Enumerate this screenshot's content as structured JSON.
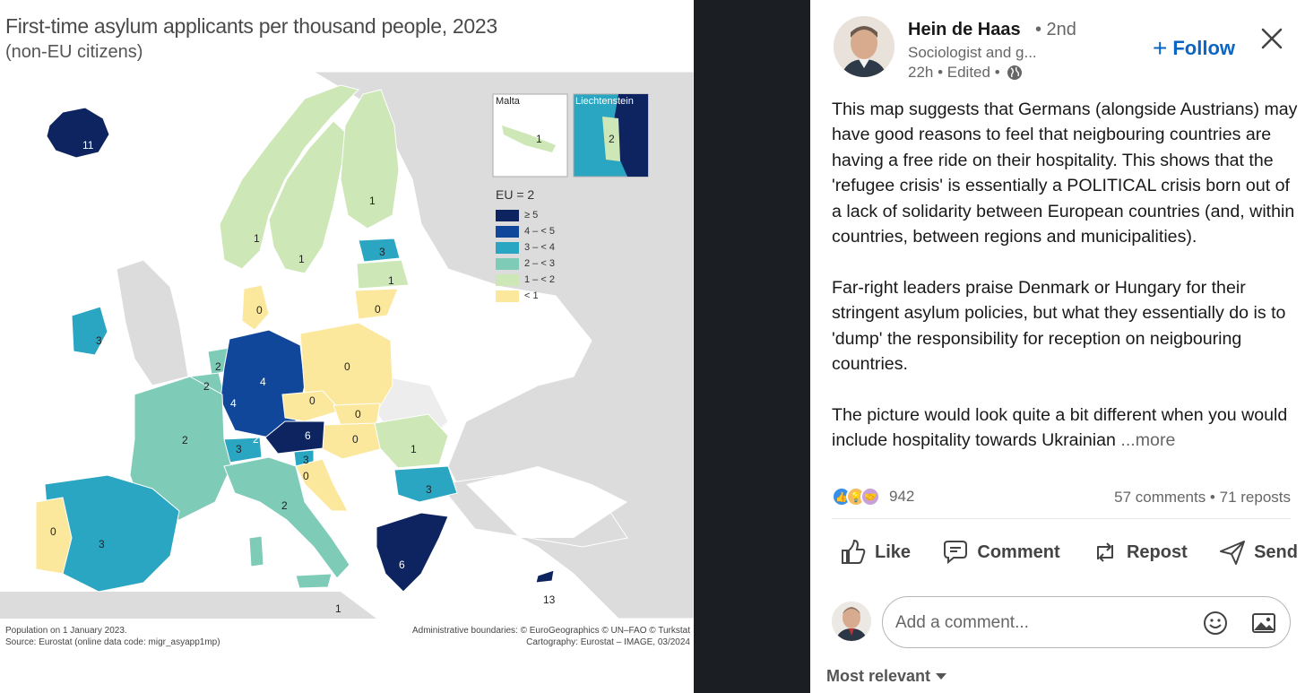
{
  "map": {
    "title": "First-time asylum applicants per thousand people, 2023",
    "subtitle": "(non-EU citizens)",
    "insets": {
      "malta": "Malta",
      "liechtenstein": "Liechtenstein",
      "malta_value": "1",
      "liechtenstein_value": "2"
    },
    "legend": {
      "title": "EU = 2",
      "items": [
        {
          "label": "≥ 5",
          "color": "#0d2461"
        },
        {
          "label": "4 – < 5",
          "color": "#10479a"
        },
        {
          "label": "3 – < 4",
          "color": "#2aa6c2"
        },
        {
          "label": "2 – < 3",
          "color": "#7ecbb8"
        },
        {
          "label": "1 – < 2",
          "color": "#cde8b6"
        },
        {
          "label": "< 1",
          "color": "#fbe89d"
        }
      ]
    },
    "value_labels": {
      "iceland": "11",
      "norway": "1",
      "sweden": "1",
      "finland": "1",
      "estonia": "3",
      "latvia": "1",
      "lithuania": "0",
      "denmark": "0",
      "ireland": "3",
      "netherlands": "2",
      "belgium": "2",
      "luxembourg": "4",
      "germany": "4",
      "poland": "0",
      "czechia": "0",
      "slovakia": "0",
      "hungary": "0",
      "austria": "6",
      "switzerland": "3",
      "liechtenstein_main": "2",
      "slovenia": "3",
      "croatia": "0",
      "france": "2",
      "romania": "1",
      "bulgaria": "3",
      "greece": "6",
      "italy": "2",
      "spain": "3",
      "portugal": "0",
      "malta_main": "1",
      "cyprus": "13"
    },
    "footer": {
      "population": "Population on 1 January 2023.",
      "source": "Source: Eurostat (online data code: migr_asyapp1mp)",
      "boundaries": "Administrative boundaries: © EuroGeographics © UN–FAO © Turkstat",
      "cartography": "Cartography: Eurostat – IMAGE, 03/2024"
    }
  },
  "post": {
    "author": "Hein de Haas",
    "degree": "• 2nd",
    "headline": "Sociologist and g...",
    "meta": "22h • Edited •",
    "follow": "Follow",
    "paragraphs": [
      "This map suggests that Germans (alongside Austrians) may have good reasons to feel that neigbouring countries are having a free ride on their hospitality. This shows that the 'refugee crisis' is essentially a POLITICAL crisis born out of a lack of solidarity between European countries (and, within countries, between regions and municipalities).",
      "Far-right leaders praise Denmark or Hungary for their stringent asylum policies, but what they essentially do is to 'dump' the responsibility for reception on neigbouring countries.",
      "The picture would look quite a bit different when you would include hospitality towards Ukrainian"
    ],
    "more": "...more",
    "reaction_count": "942",
    "counts": "57 comments • 71 reposts",
    "actions": {
      "like": "Like",
      "comment": "Comment",
      "repost": "Repost",
      "send": "Send"
    },
    "comment_placeholder": "Add a comment...",
    "sort": "Most relevant"
  }
}
